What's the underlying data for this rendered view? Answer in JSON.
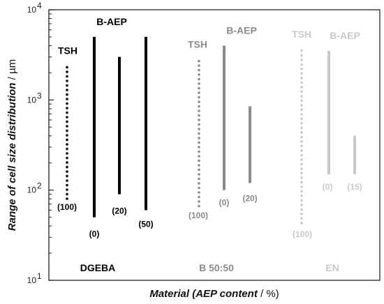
{
  "chart_data": {
    "type": "range",
    "ylabel_italic": "Range of cell size distribution",
    "ylabel_unit": " / µm",
    "xlabel_italic": "Material (AEP content",
    "xlabel_unit": " / %)",
    "yscale": "log",
    "ylim": [
      10,
      10000
    ],
    "y_ticks": [
      {
        "value": 10,
        "mantissa": "10",
        "exponent": "1"
      },
      {
        "value": 100,
        "mantissa": "10",
        "exponent": "2"
      },
      {
        "value": 1000,
        "mantissa": "10",
        "exponent": "3"
      },
      {
        "value": 10000,
        "mantissa": "10",
        "exponent": "4"
      }
    ],
    "grid": false,
    "colors": {
      "DGEBA": "#000000",
      "B 50:50": "#8a8a8a",
      "EN": "#c8c8c8"
    },
    "groups": [
      {
        "name": "DGEBA",
        "color": "#000000",
        "tsh_label": "TSH",
        "baep_label": "B-AEP",
        "series": [
          {
            "kind": "TSH",
            "label": "(100)",
            "min": 80,
            "max": 2300,
            "style": "dotted"
          },
          {
            "kind": "B-AEP",
            "label": "(0)",
            "min": 50,
            "max": 5000,
            "style": "solid"
          },
          {
            "kind": "B-AEP",
            "label": "(20)",
            "min": 90,
            "max": 3000,
            "style": "solid"
          },
          {
            "kind": "B-AEP",
            "label": "(50)",
            "min": 60,
            "max": 5000,
            "style": "solid"
          }
        ]
      },
      {
        "name": "B 50:50",
        "color": "#8a8a8a",
        "tsh_label": "TSH",
        "baep_label": "B-AEP",
        "series": [
          {
            "kind": "TSH",
            "label": "(100)",
            "min": 65,
            "max": 2700,
            "style": "dotted"
          },
          {
            "kind": "B-AEP",
            "label": "(0)",
            "min": 100,
            "max": 4000,
            "style": "solid"
          },
          {
            "kind": "B-AEP",
            "label": "(20)",
            "min": 120,
            "max": 850,
            "style": "solid"
          }
        ]
      },
      {
        "name": "EN",
        "color": "#c8c8c8",
        "tsh_label": "TSH",
        "baep_label": "B-AEP",
        "series": [
          {
            "kind": "TSH",
            "label": "(100)",
            "min": 40,
            "max": 3500,
            "style": "dotted"
          },
          {
            "kind": "B-AEP",
            "label": "(0)",
            "min": 150,
            "max": 3500,
            "style": "solid"
          },
          {
            "kind": "B-AEP",
            "label": "(15)",
            "min": 150,
            "max": 400,
            "style": "solid"
          }
        ]
      }
    ]
  }
}
